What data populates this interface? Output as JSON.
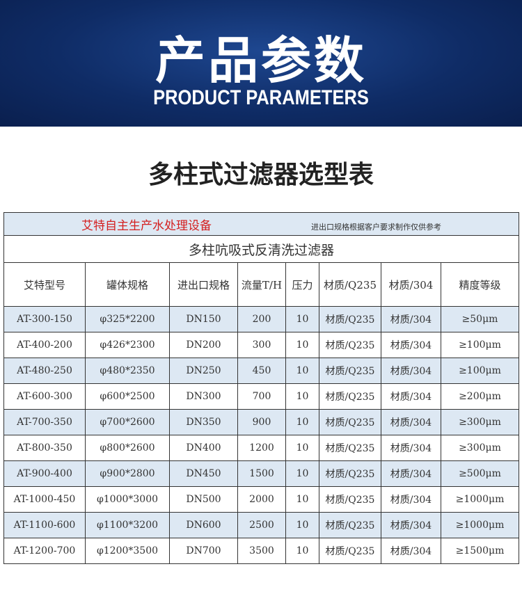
{
  "header": {
    "title": "产品参数",
    "subtitle": "PRODUCT PARAMETERS"
  },
  "section_title": "多柱式过滤器选型表",
  "table": {
    "notice": "艾特自主生产水处理设备",
    "note": "进出口规格根据客户要求制作仅供参考",
    "caption": "多柱吭吸式反清洗过滤器",
    "columns": [
      "艾特型号",
      "罐体规格",
      "进出口规格",
      "流量T/H",
      "压力",
      "材质/Q235",
      "材质/304",
      "精度等级"
    ],
    "rows": [
      [
        "AT-300-150",
        "φ325*2200",
        "DN150",
        "200",
        "10",
        "材质/Q235",
        "材质/304",
        "≥50μm"
      ],
      [
        "AT-400-200",
        "φ426*2300",
        "DN200",
        "300",
        "10",
        "材质/Q235",
        "材质/304",
        "≥100μm"
      ],
      [
        "AT-480-250",
        "φ480*2350",
        "DN250",
        "450",
        "10",
        "材质/Q235",
        "材质/304",
        "≥100μm"
      ],
      [
        "AT-600-300",
        "φ600*2500",
        "DN300",
        "700",
        "10",
        "材质/Q235",
        "材质/304",
        "≥200μm"
      ],
      [
        "AT-700-350",
        "φ700*2600",
        "DN350",
        "900",
        "10",
        "材质/Q235",
        "材质/304",
        "≥300μm"
      ],
      [
        "AT-800-350",
        "φ800*2600",
        "DN400",
        "1200",
        "10",
        "材质/Q235",
        "材质/304",
        "≥300μm"
      ],
      [
        "AT-900-400",
        "φ900*2800",
        "DN450",
        "1500",
        "10",
        "材质/Q235",
        "材质/304",
        "≥500μm"
      ],
      [
        "AT-1000-450",
        "φ1000*3000",
        "DN500",
        "2000",
        "10",
        "材质/Q235",
        "材质/304",
        "≥1000μm"
      ],
      [
        "AT-1100-600",
        "φ1100*3200",
        "DN600",
        "2500",
        "10",
        "材质/Q235",
        "材质/304",
        "≥1000μm"
      ],
      [
        "AT-1200-700",
        "φ1200*3500",
        "DN700",
        "3500",
        "10",
        "材质/Q235",
        "材质/304",
        "≥1500μm"
      ]
    ]
  }
}
